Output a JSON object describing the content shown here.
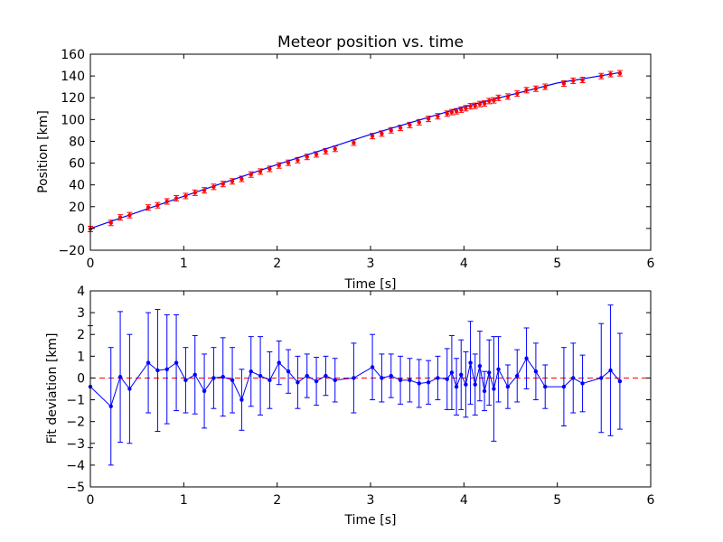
{
  "chart_data": [
    {
      "type": "scatter",
      "title": "Meteor position vs. time",
      "xlabel": "Time [s]",
      "ylabel": "Position [km]",
      "xlim": [
        0,
        6
      ],
      "ylim": [
        -20,
        160
      ],
      "xticks": [
        "0",
        "1",
        "2",
        "3",
        "4",
        "5",
        "6"
      ],
      "yticks": [
        "−20",
        "0",
        "20",
        "40",
        "60",
        "80",
        "100",
        "120",
        "140",
        "160"
      ],
      "grid": false,
      "legend": "none",
      "colors": {
        "points": "#ff0000",
        "fit_line": "#0000ff",
        "errorbars": "#ff0000"
      },
      "series": [
        {
          "kind": "data-with-errorbars",
          "x": [
            0,
            0.22,
            0.32,
            0.42,
            0.62,
            0.72,
            0.82,
            0.92,
            1.02,
            1.12,
            1.22,
            1.32,
            1.42,
            1.52,
            1.62,
            1.72,
            1.82,
            1.92,
            2.02,
            2.12,
            2.22,
            2.32,
            2.42,
            2.52,
            2.62,
            2.82,
            3.02,
            3.12,
            3.22,
            3.32,
            3.42,
            3.52,
            3.62,
            3.72,
            3.82,
            3.87,
            3.92,
            3.97,
            4.02,
            4.07,
            4.12,
            4.17,
            4.22,
            4.27,
            4.32,
            4.37,
            4.47,
            4.57,
            4.67,
            4.77,
            4.87,
            5.07,
            5.17,
            5.27,
            5.47,
            5.57,
            5.67
          ],
          "y": [
            -0.5,
            5.1,
            10.1,
            12.2,
            19.2,
            21.3,
            24.8,
            27.7,
            29.8,
            32.8,
            35.0,
            38.2,
            40.8,
            43.2,
            45.5,
            49.5,
            52.2,
            54.7,
            57.8,
            60.3,
            62.7,
            65.7,
            68.0,
            70.9,
            73.1,
            78.8,
            84.8,
            87.1,
            90.1,
            92.3,
            95.0,
            97.5,
            100.6,
            103.0,
            105.4,
            106.8,
            107.6,
            109.1,
            110.4,
            112.2,
            112.6,
            114.2,
            114.7,
            117.0,
            117.6,
            119.9,
            121.1,
            123.8,
            127.0,
            128.3,
            130.1,
            133.1,
            135.6,
            136.3,
            139.9,
            141.7,
            142.5
          ],
          "error": 2.5
        },
        {
          "kind": "fit-line",
          "x": [
            0,
            1,
            2,
            3,
            4,
            5,
            5.67
          ],
          "y": [
            0,
            29.5,
            58.6,
            86.3,
            111.6,
            133.5,
            143.2
          ]
        }
      ]
    },
    {
      "type": "line",
      "title": "",
      "xlabel": "Time [s]",
      "ylabel": "Fit deviation [km]",
      "xlim": [
        0,
        6
      ],
      "ylim": [
        -5,
        4
      ],
      "xticks": [
        "0",
        "1",
        "2",
        "3",
        "4",
        "5",
        "6"
      ],
      "yticks": [
        "−5",
        "−4",
        "−3",
        "−2",
        "−1",
        "0",
        "1",
        "2",
        "3",
        "4"
      ],
      "grid": false,
      "legend": "none",
      "colors": {
        "line": "#0000ff",
        "zero_line": "#ff0000"
      },
      "zero_line": 0,
      "series": [
        {
          "kind": "deviation-with-errorbars",
          "x": [
            0,
            0.22,
            0.32,
            0.42,
            0.62,
            0.72,
            0.82,
            0.92,
            1.02,
            1.12,
            1.22,
            1.32,
            1.42,
            1.52,
            1.62,
            1.72,
            1.82,
            1.92,
            2.02,
            2.12,
            2.22,
            2.32,
            2.42,
            2.52,
            2.62,
            2.82,
            3.02,
            3.12,
            3.22,
            3.32,
            3.42,
            3.52,
            3.62,
            3.72,
            3.82,
            3.87,
            3.92,
            3.97,
            4.02,
            4.07,
            4.12,
            4.17,
            4.22,
            4.27,
            4.32,
            4.37,
            4.47,
            4.57,
            4.67,
            4.77,
            4.87,
            5.07,
            5.17,
            5.27,
            5.47,
            5.57,
            5.67
          ],
          "y": [
            -0.4,
            -1.3,
            0.05,
            -0.5,
            0.7,
            0.35,
            0.4,
            0.7,
            -0.1,
            0.15,
            -0.6,
            0.0,
            0.05,
            -0.1,
            -1.0,
            0.3,
            0.1,
            -0.1,
            0.7,
            0.3,
            -0.2,
            0.1,
            -0.15,
            0.1,
            -0.1,
            0.0,
            0.5,
            0.0,
            0.1,
            -0.1,
            -0.1,
            -0.25,
            -0.2,
            0.0,
            -0.05,
            0.25,
            -0.4,
            0.15,
            -0.3,
            0.7,
            -0.3,
            0.55,
            -0.6,
            0.25,
            -0.5,
            0.4,
            -0.4,
            0.1,
            0.9,
            0.3,
            -0.4,
            -0.4,
            0.0,
            -0.25,
            0.0,
            0.35,
            -0.15
          ],
          "error_low": [
            2.8,
            2.7,
            3.0,
            2.5,
            2.3,
            2.8,
            2.5,
            2.2,
            1.5,
            1.8,
            1.7,
            1.4,
            1.8,
            1.5,
            1.4,
            1.6,
            1.8,
            1.3,
            1.0,
            1.0,
            1.2,
            1.0,
            1.1,
            0.9,
            1.0,
            1.6,
            1.5,
            1.1,
            1.0,
            1.1,
            1.0,
            1.1,
            1.0,
            1.0,
            1.4,
            1.7,
            1.3,
            1.6,
            1.5,
            1.9,
            1.4,
            1.6,
            0.9,
            1.5,
            2.4,
            1.5,
            1.0,
            1.2,
            1.4,
            1.3,
            1.0,
            1.8,
            1.6,
            1.3,
            2.5,
            3.0,
            2.2
          ],
          "error_high": [
            2.8,
            2.7,
            3.0,
            2.5,
            2.3,
            2.8,
            2.5,
            2.2,
            1.5,
            1.8,
            1.7,
            1.4,
            1.8,
            1.5,
            1.4,
            1.6,
            1.8,
            1.3,
            1.0,
            1.0,
            1.2,
            1.0,
            1.1,
            0.9,
            1.0,
            1.6,
            1.5,
            1.1,
            1.0,
            1.1,
            1.0,
            1.1,
            1.0,
            1.0,
            1.4,
            1.7,
            1.3,
            1.6,
            1.5,
            1.9,
            1.4,
            1.6,
            0.9,
            1.5,
            2.4,
            1.5,
            1.0,
            1.2,
            1.4,
            1.3,
            1.0,
            1.8,
            1.6,
            1.3,
            2.5,
            3.0,
            2.2
          ]
        }
      ]
    }
  ]
}
